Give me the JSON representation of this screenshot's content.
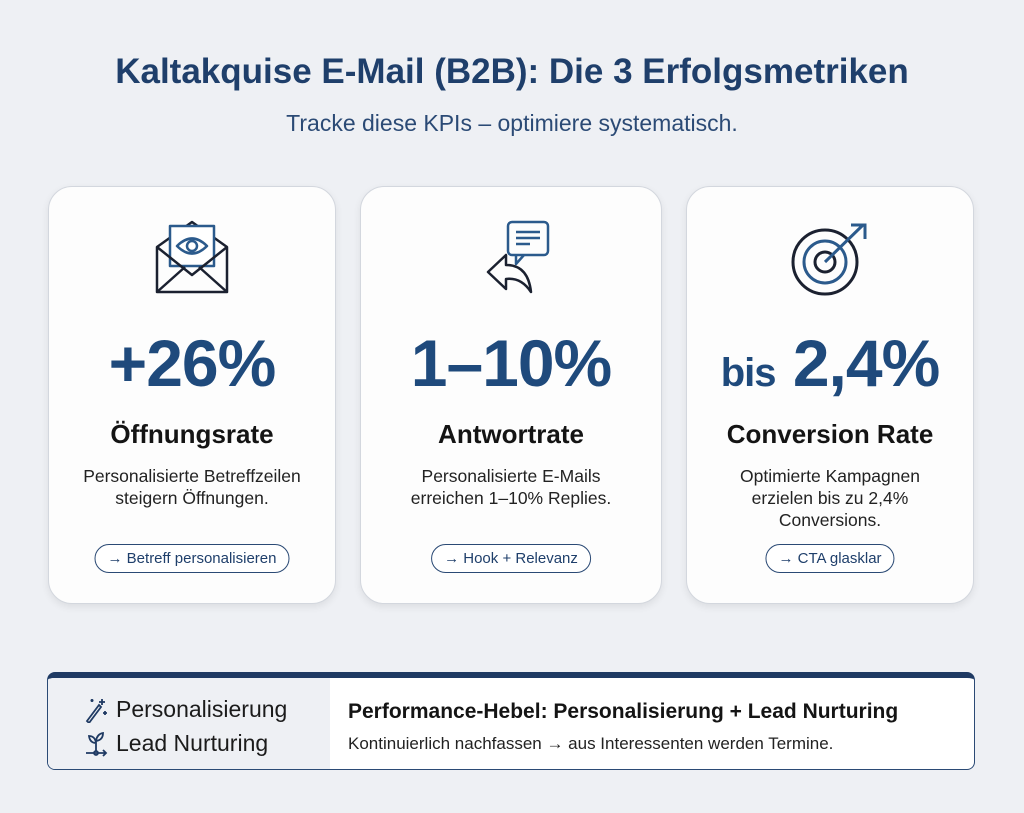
{
  "header": {
    "title": "Kaltakquise E-Mail (B2B): Die 3 Erfolgsmetriken",
    "subtitle": "Tracke diese KPIs – optimiere systematisch."
  },
  "cards": [
    {
      "icon": "envelope-eye-icon",
      "metric": "+26%",
      "label": "Öffnungsrate",
      "desc": "Personalisierte Betreffzeilen steigern Öffnungen.",
      "pill": "→ Betreff personalisieren"
    },
    {
      "icon": "reply-chat-icon",
      "metric": "1–10%",
      "label": "Antwortrate",
      "desc": "Personalisierte E-Mails erreichen 1–10% Replies.",
      "pill": "→ Hook + Relevanz"
    },
    {
      "icon": "target-arrow-icon",
      "metric_prefix": "bis",
      "metric": "2,4%",
      "label": "Conversion Rate",
      "desc": "Optimierte Kampagnen erzielen bis zu 2,4% Conversions.",
      "pill": "→ CTA glasklar"
    }
  ],
  "panel": {
    "left": [
      "Personalisierung",
      "Lead Nurturing"
    ],
    "title": "Performance-Hebel: Personalisierung + Lead Nurturing",
    "text": "Kontinuierlich nachfassen → aus Interessenten werden Termine."
  },
  "colors": {
    "primary": "#1f4a7c",
    "navy": "#1f3a63",
    "bg": "#eef0f4"
  }
}
